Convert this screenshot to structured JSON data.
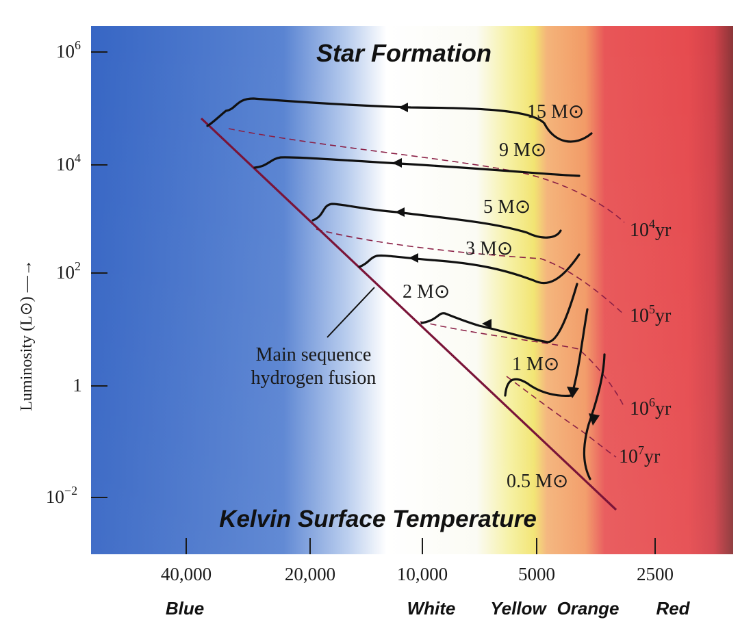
{
  "title": "Star Formation",
  "x_title": "Kelvin Surface Temperature",
  "y_axis_label": "Luminosity (L⊙) —→",
  "y_ticks": [
    {
      "base": "10",
      "exp": "6"
    },
    {
      "base": "10",
      "exp": "4"
    },
    {
      "base": "10",
      "exp": "2"
    },
    {
      "base": "1",
      "exp": ""
    },
    {
      "base": "10",
      "exp": "−2"
    }
  ],
  "x_ticks": [
    "40,000",
    "20,000",
    "10,000",
    "5000",
    "2500"
  ],
  "color_words": [
    "Blue",
    "White",
    "Yellow",
    "Orange",
    "Red"
  ],
  "main_sequence_label": [
    "Main sequence",
    "hydrogen fusion"
  ],
  "mass_labels": [
    "15 M⊙",
    "9 M⊙",
    "5 M⊙",
    "3 M⊙",
    "2 M⊙",
    "1 M⊙",
    "0.5 M⊙"
  ],
  "isochrones": [
    {
      "base": "10",
      "exp": "4",
      "unit": "yr"
    },
    {
      "base": "10",
      "exp": "5",
      "unit": "yr"
    },
    {
      "base": "10",
      "exp": "6",
      "unit": "yr"
    },
    {
      "base": "10",
      "exp": "7",
      "unit": "yr"
    }
  ],
  "colors": {
    "blue": "#3f6fc9",
    "white": "#ffffff",
    "yellow": "#f3ec86",
    "orange": "#f3a46a",
    "red": "#e94a4d",
    "main_sequence": "#7a1438",
    "isochrone": "#8a1f45",
    "track": "#111111"
  }
}
